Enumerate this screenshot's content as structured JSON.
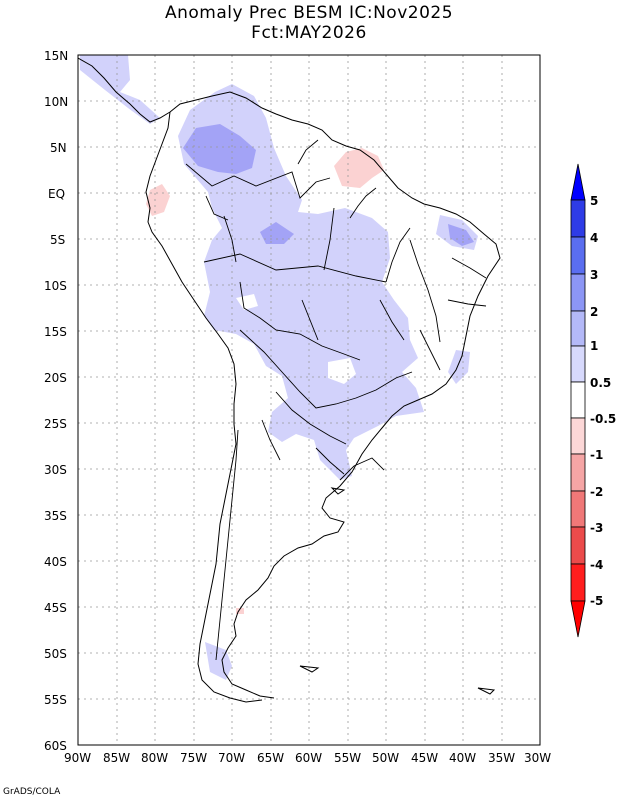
{
  "title": {
    "line1": "Anomaly Prec BESM IC:Nov2025",
    "line2": "Fct:MAY2026"
  },
  "axes": {
    "lat_labels": [
      "15N",
      "10N",
      "5N",
      "EQ",
      "5S",
      "10S",
      "15S",
      "20S",
      "25S",
      "30S",
      "35S",
      "40S",
      "45S",
      "50S",
      "55S",
      "60S"
    ],
    "lon_labels": [
      "90W",
      "85W",
      "80W",
      "75W",
      "70W",
      "65W",
      "60W",
      "55W",
      "50W",
      "45W",
      "40W",
      "35W",
      "30W"
    ]
  },
  "map": {
    "lon_range": [
      -90,
      -30
    ],
    "lat_range": [
      -60,
      15
    ],
    "anomaly_regions": [
      {
        "name": "amazon-west",
        "level": "1 to 2",
        "color": "#a0a0f5"
      },
      {
        "name": "amazon-central",
        "level": "1 to 2",
        "color": "#a0a0f5"
      },
      {
        "name": "wide-positive",
        "level": "0.5 to 1",
        "color": "#d2d2fb"
      },
      {
        "name": "ecuador-negative",
        "level": "-0.5 to -1",
        "color": "#fbd2d2"
      },
      {
        "name": "guiana-negative",
        "level": "-0.5 to -1",
        "color": "#fbd2d2"
      }
    ]
  },
  "colorbar": {
    "labels": [
      "5",
      "4",
      "3",
      "2",
      "1",
      "0.5",
      "-0.5",
      "-1",
      "-2",
      "-3",
      "-4",
      "-5"
    ],
    "colors": [
      "#0000ff",
      "#2e3ce6",
      "#5a6ef0",
      "#8c96f5",
      "#b4b9f8",
      "#d7d9fc",
      "#ffffff",
      "#fcd7d7",
      "#f5a5a5",
      "#f07878",
      "#eb4b4b",
      "#ff1e1e",
      "#ff0000"
    ]
  },
  "footer": "GrADS/COLA"
}
